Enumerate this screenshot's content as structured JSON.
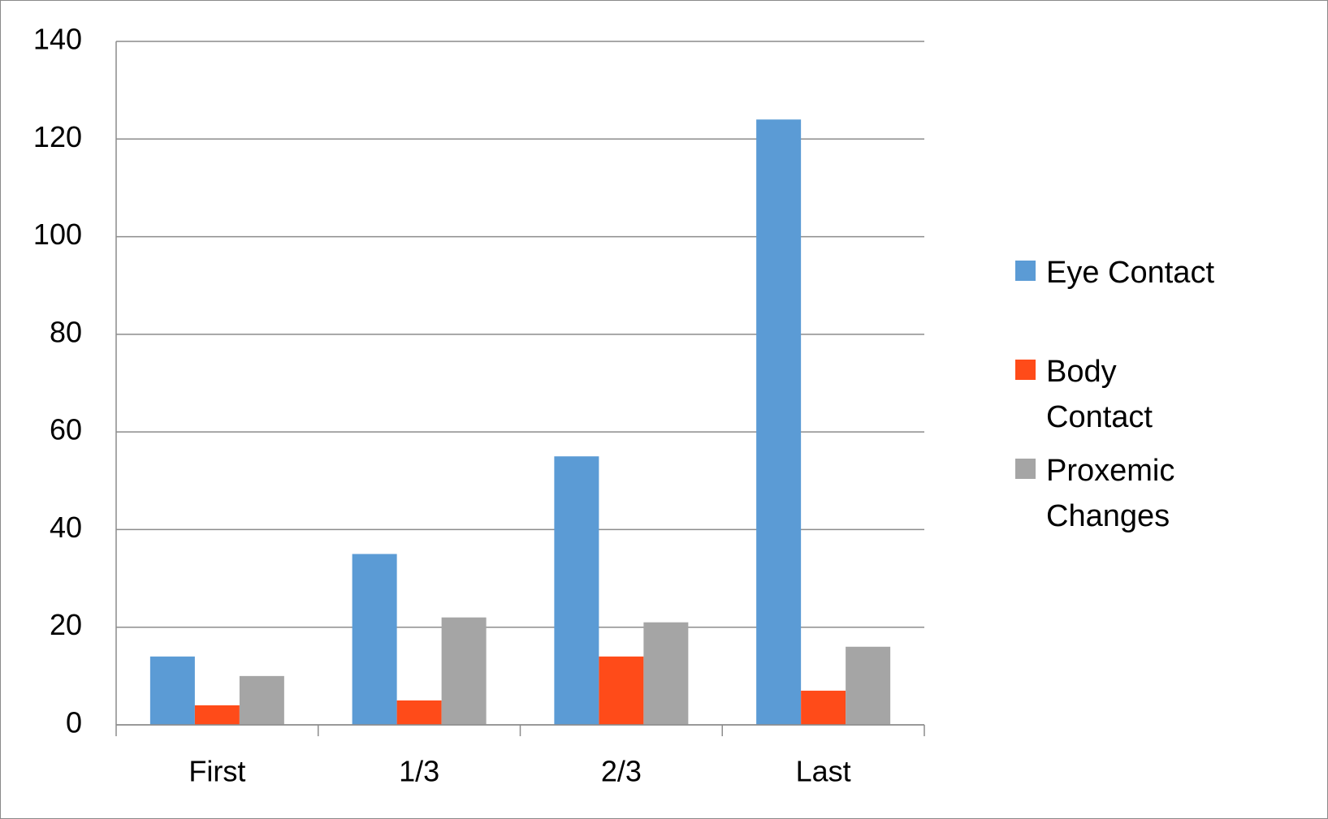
{
  "chart_data": {
    "type": "bar",
    "categories": [
      "First",
      "1/3",
      "2/3",
      "Last"
    ],
    "series": [
      {
        "name": "Eye Contact",
        "color": "#5b9bd5",
        "values": [
          14,
          35,
          55,
          124
        ]
      },
      {
        "name": "Body Contact",
        "color": "#ff4b19",
        "values": [
          4,
          5,
          14,
          7
        ]
      },
      {
        "name": "Proxemic Changes",
        "color": "#a5a5a5",
        "values": [
          10,
          22,
          21,
          16
        ]
      }
    ],
    "ylim": [
      0,
      140
    ],
    "yticks": [
      0,
      20,
      40,
      60,
      80,
      100,
      120,
      140
    ],
    "grid": true,
    "legend": "right"
  }
}
